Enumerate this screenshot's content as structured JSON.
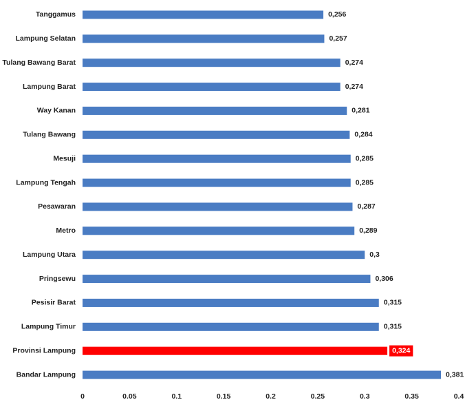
{
  "chart_data": {
    "type": "barh",
    "categories": [
      "Tanggamus",
      "Lampung Selatan",
      "Tulang Bawang Barat",
      "Lampung Barat",
      "Way Kanan",
      "Tulang Bawang",
      "Mesuji",
      "Lampung Tengah",
      "Pesawaran",
      "Metro",
      "Lampung Utara",
      "Pringsewu",
      "Pesisir Barat",
      "Lampung Timur",
      "Provinsi Lampung",
      "Bandar Lampung"
    ],
    "values": [
      0.256,
      0.257,
      0.274,
      0.274,
      0.281,
      0.284,
      0.285,
      0.285,
      0.287,
      0.289,
      0.3,
      0.306,
      0.315,
      0.315,
      0.324,
      0.381
    ],
    "value_labels": [
      "0,256",
      "0,257",
      "0,274",
      "0,274",
      "0,281",
      "0,284",
      "0,285",
      "0,285",
      "0,287",
      "0,289",
      "0,3",
      "0,306",
      "0,315",
      "0,315",
      "0,324",
      "0,381"
    ],
    "colors": [
      "#4a7cc3",
      "#4a7cc3",
      "#4a7cc3",
      "#4a7cc3",
      "#4a7cc3",
      "#4a7cc3",
      "#4a7cc3",
      "#4a7cc3",
      "#4a7cc3",
      "#4a7cc3",
      "#4a7cc3",
      "#4a7cc3",
      "#4a7cc3",
      "#4a7cc3",
      "#ff0000",
      "#4a7cc3"
    ],
    "xlim": [
      0,
      0.4
    ],
    "xticks": [
      0,
      0.05,
      0.1,
      0.15,
      0.2,
      0.25,
      0.3,
      0.35,
      0.4
    ],
    "grid": false
  }
}
